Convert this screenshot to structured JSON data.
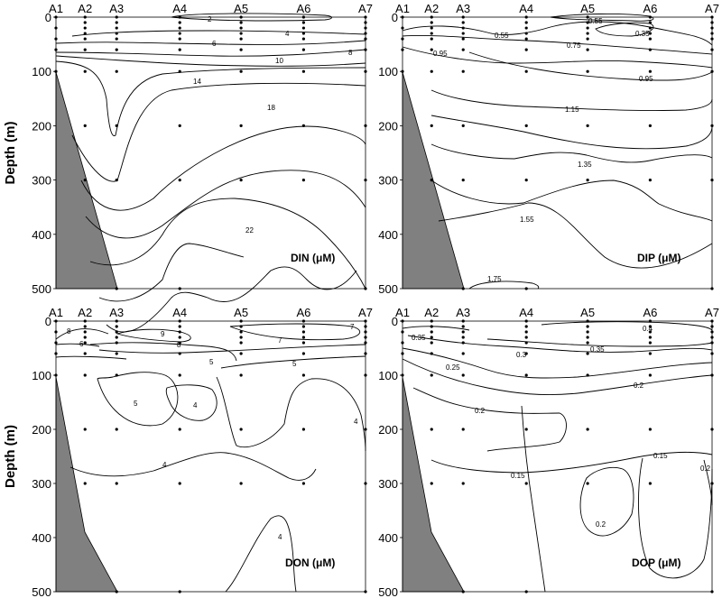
{
  "chart_data": [
    {
      "type": "contour",
      "title": "DIN (μM)",
      "ylabel": "Depth (m)",
      "stations": [
        "A1",
        "A2",
        "A3",
        "A4",
        "A5",
        "A6",
        "A7"
      ],
      "yticks": [
        "0",
        "100",
        "200",
        "300",
        "400",
        "500"
      ],
      "ylim": [
        0,
        500
      ],
      "contour_levels": [
        "2",
        "4",
        "6",
        "8",
        "10",
        "14",
        "18",
        "22"
      ],
      "sample_depths": [
        [
          0,
          20,
          40,
          60,
          100
        ],
        [
          0,
          10,
          20,
          30,
          40,
          60,
          100,
          200,
          300
        ],
        [
          0,
          10,
          20,
          30,
          40,
          60,
          100,
          200,
          300,
          500
        ],
        [
          0,
          10,
          20,
          30,
          40,
          60,
          100,
          200,
          300,
          500
        ],
        [
          0,
          10,
          20,
          30,
          40,
          60,
          100,
          200,
          300
        ],
        [
          0,
          10,
          20,
          30,
          40,
          60,
          100,
          200,
          300
        ],
        [
          0,
          10,
          20,
          30,
          40,
          60,
          100,
          200,
          300,
          500
        ]
      ]
    },
    {
      "type": "contour",
      "title": "DIP (μM)",
      "ylabel": "",
      "stations": [
        "A1",
        "A2",
        "A3",
        "A4",
        "A5",
        "A6",
        "A7"
      ],
      "yticks": [
        "0",
        "100",
        "200",
        "300",
        "400",
        "500"
      ],
      "ylim": [
        0,
        500
      ],
      "contour_levels": [
        "0.35",
        "0.55",
        "0.75",
        "0.95",
        "1.15",
        "1.35",
        "1.55",
        "1.75"
      ],
      "sample_depths": [
        [
          0,
          20,
          40,
          60,
          100
        ],
        [
          0,
          10,
          20,
          30,
          40,
          60,
          100,
          200,
          300
        ],
        [
          0,
          10,
          20,
          30,
          40,
          60,
          100,
          200,
          300,
          500
        ],
        [
          0,
          10,
          20,
          30,
          40,
          60,
          100,
          200,
          300,
          500
        ],
        [
          0,
          10,
          20,
          30,
          40,
          60,
          100,
          200,
          300
        ],
        [
          0,
          10,
          20,
          30,
          40,
          60,
          100,
          200,
          300
        ],
        [
          0,
          10,
          20,
          30,
          40,
          60,
          100,
          200,
          300,
          500
        ]
      ]
    },
    {
      "type": "contour",
      "title": "DON (μM)",
      "ylabel": "Depth (m)",
      "stations": [
        "A1",
        "A2",
        "A3",
        "A4",
        "A5",
        "A6",
        "A7"
      ],
      "yticks": [
        "0",
        "100",
        "200",
        "300",
        "400",
        "500"
      ],
      "ylim": [
        0,
        500
      ],
      "contour_levels": [
        "4",
        "5",
        "6",
        "7",
        "8",
        "9"
      ],
      "sample_depths": [
        [
          0,
          20,
          40,
          60,
          100
        ],
        [
          0,
          10,
          20,
          30,
          40,
          60,
          100,
          200,
          300
        ],
        [
          0,
          10,
          20,
          30,
          40,
          60,
          100,
          200,
          300,
          500
        ],
        [
          0,
          10,
          20,
          30,
          40,
          60,
          100,
          200,
          300,
          500
        ],
        [
          0,
          10,
          20,
          30,
          40,
          60,
          100,
          200,
          300
        ],
        [
          0,
          10,
          20,
          30,
          40,
          60,
          100,
          200,
          300
        ],
        [
          0,
          10,
          20,
          30,
          40,
          60,
          100,
          200,
          300,
          500
        ]
      ]
    },
    {
      "type": "contour",
      "title": "DOP (μM)",
      "ylabel": "",
      "stations": [
        "A1",
        "A2",
        "A3",
        "A4",
        "A5",
        "A6",
        "A7"
      ],
      "yticks": [
        "0",
        "100",
        "200",
        "300",
        "400",
        "500"
      ],
      "ylim": [
        0,
        500
      ],
      "contour_levels": [
        "0.15",
        "0.2",
        "0.25",
        "0.3",
        "0.35",
        "0.4"
      ],
      "sample_depths": [
        [
          0,
          20,
          40,
          60,
          100
        ],
        [
          0,
          10,
          20,
          30,
          40,
          60,
          100,
          200,
          300
        ],
        [
          0,
          10,
          20,
          30,
          40,
          60,
          100,
          200,
          300,
          500
        ],
        [
          0,
          10,
          20,
          30,
          40,
          60,
          100,
          200,
          300,
          500
        ],
        [
          0,
          10,
          20,
          30,
          40,
          60,
          100,
          200,
          300
        ],
        [
          0,
          10,
          20,
          30,
          40,
          60,
          100,
          200,
          300
        ],
        [
          0,
          10,
          20,
          30,
          40,
          60,
          100,
          200,
          300,
          500
        ]
      ]
    }
  ]
}
